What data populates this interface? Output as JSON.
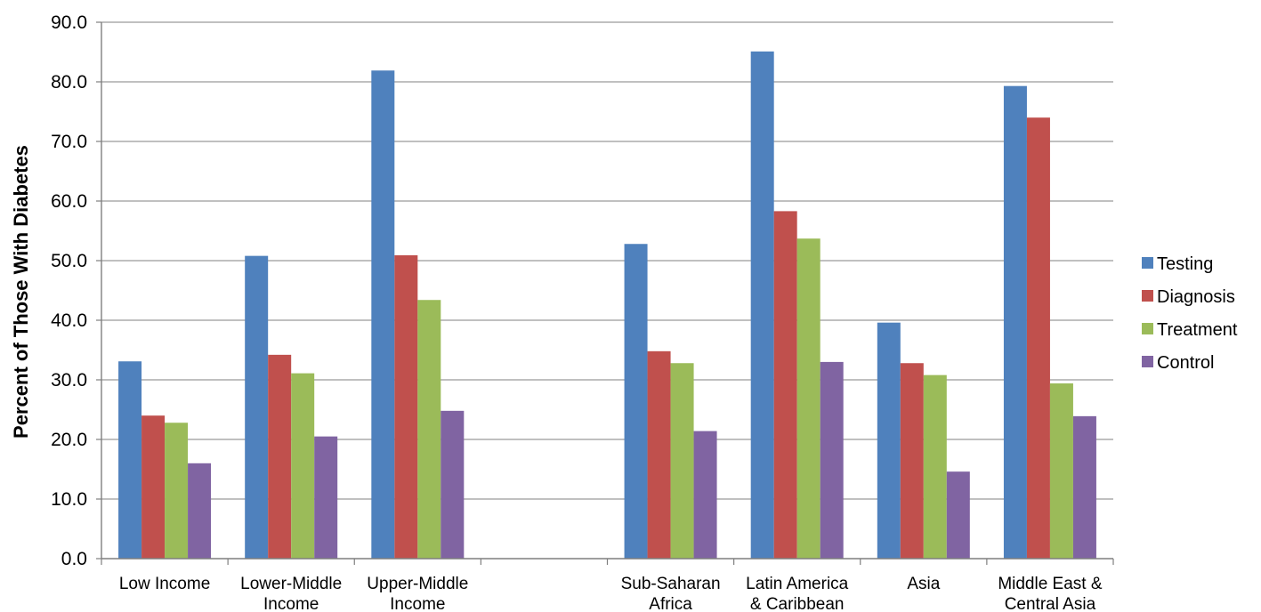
{
  "chart_data": {
    "type": "bar",
    "title": "",
    "xlabel": "",
    "ylabel": "Percent of Those With Diabetes",
    "ylim": [
      0,
      90
    ],
    "yticks": [
      "0.0",
      "10.0",
      "20.0",
      "30.0",
      "40.0",
      "50.0",
      "60.0",
      "70.0",
      "80.0",
      "90.0"
    ],
    "grid": true,
    "legend_position": "right",
    "categories": [
      [
        "Low Income"
      ],
      [
        "Lower-Middle",
        "Income"
      ],
      [
        "Upper-Middle",
        "Income"
      ],
      [
        ""
      ],
      [
        "Sub-Saharan",
        "Africa"
      ],
      [
        "Latin America",
        "& Caribbean"
      ],
      [
        "Asia"
      ],
      [
        "Middle East &",
        "Central Asia"
      ]
    ],
    "series": [
      {
        "name": "Testing",
        "color": "#4f81bd",
        "values": [
          33.1,
          50.8,
          81.9,
          null,
          52.8,
          85.1,
          39.6,
          79.3
        ]
      },
      {
        "name": "Diagnosis",
        "color": "#c0504d",
        "values": [
          24.0,
          34.2,
          50.9,
          null,
          34.8,
          58.3,
          32.8,
          74.0
        ]
      },
      {
        "name": "Treatment",
        "color": "#9bbb59",
        "values": [
          22.8,
          31.1,
          43.4,
          null,
          32.8,
          53.7,
          30.8,
          29.4
        ]
      },
      {
        "name": "Control",
        "color": "#8064a2",
        "values": [
          16.0,
          20.5,
          24.8,
          null,
          21.4,
          33.0,
          14.6,
          23.9
        ]
      }
    ]
  }
}
